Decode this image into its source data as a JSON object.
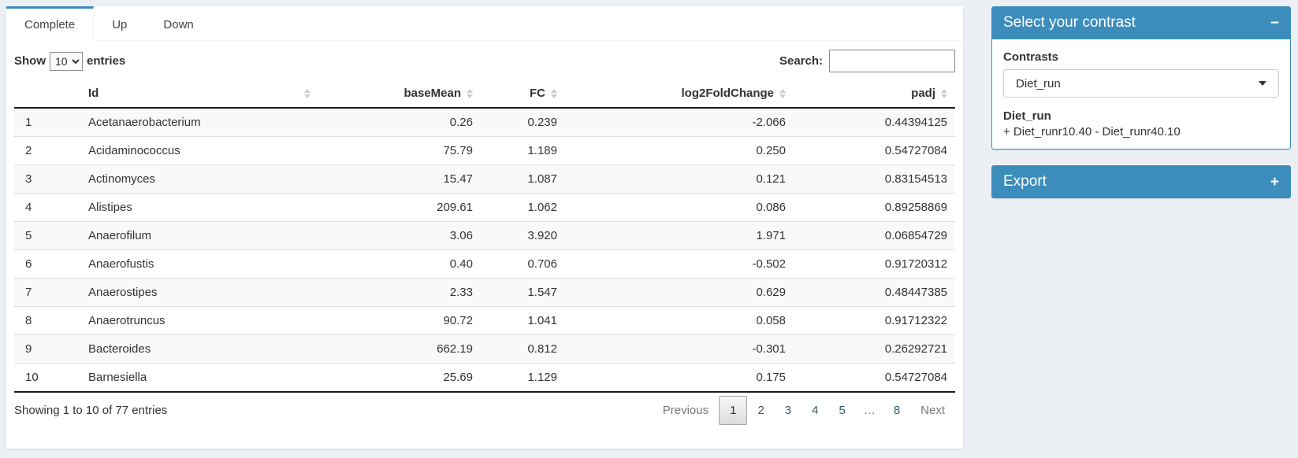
{
  "tabs": [
    {
      "label": "Complete",
      "active": true
    },
    {
      "label": "Up",
      "active": false
    },
    {
      "label": "Down",
      "active": false
    }
  ],
  "controls": {
    "show_label": "Show",
    "page_length": "10",
    "entries_label": "entries",
    "search_label": "Search:",
    "search_value": ""
  },
  "table": {
    "columns": [
      {
        "label": "Id",
        "align": "left"
      },
      {
        "label": "baseMean",
        "align": "right"
      },
      {
        "label": "FC",
        "align": "right"
      },
      {
        "label": "log2FoldChange",
        "align": "right"
      },
      {
        "label": "padj",
        "align": "right"
      }
    ],
    "rows": [
      [
        "1",
        "Acetanaerobacterium",
        "0.26",
        "0.239",
        "-2.066",
        "0.44394125"
      ],
      [
        "2",
        "Acidaminococcus",
        "75.79",
        "1.189",
        "0.250",
        "0.54727084"
      ],
      [
        "3",
        "Actinomyces",
        "15.47",
        "1.087",
        "0.121",
        "0.83154513"
      ],
      [
        "4",
        "Alistipes",
        "209.61",
        "1.062",
        "0.086",
        "0.89258869"
      ],
      [
        "5",
        "Anaerofilum",
        "3.06",
        "3.920",
        "1.971",
        "0.06854729"
      ],
      [
        "6",
        "Anaerofustis",
        "0.40",
        "0.706",
        "-0.502",
        "0.91720312"
      ],
      [
        "7",
        "Anaerostipes",
        "2.33",
        "1.547",
        "0.629",
        "0.48447385"
      ],
      [
        "8",
        "Anaerotruncus",
        "90.72",
        "1.041",
        "0.058",
        "0.91712322"
      ],
      [
        "9",
        "Bacteroides",
        "662.19",
        "0.812",
        "-0.301",
        "0.26292721"
      ],
      [
        "10",
        "Barnesiella",
        "25.69",
        "1.129",
        "0.175",
        "0.54727084"
      ]
    ]
  },
  "footer": {
    "info": "Showing 1 to 10 of 77 entries",
    "previous_label": "Previous",
    "pages": [
      "1",
      "2",
      "3",
      "4",
      "5",
      "…",
      "8"
    ],
    "current_page": "1",
    "next_label": "Next"
  },
  "sidebar": {
    "contrast_box": {
      "title": "Select your contrast",
      "collapse_icon": "−",
      "contrasts_label": "Contrasts",
      "selected_contrast": "Diet_run",
      "contrast_name": "Diet_run",
      "contrast_formula": "+ Diet_runr10.40 - Diet_runr40.10"
    },
    "export_box": {
      "title": "Export",
      "expand_icon": "+"
    }
  },
  "colors": {
    "accent_blue": "#3c8dbc",
    "page_background": "#ecf0f5"
  }
}
